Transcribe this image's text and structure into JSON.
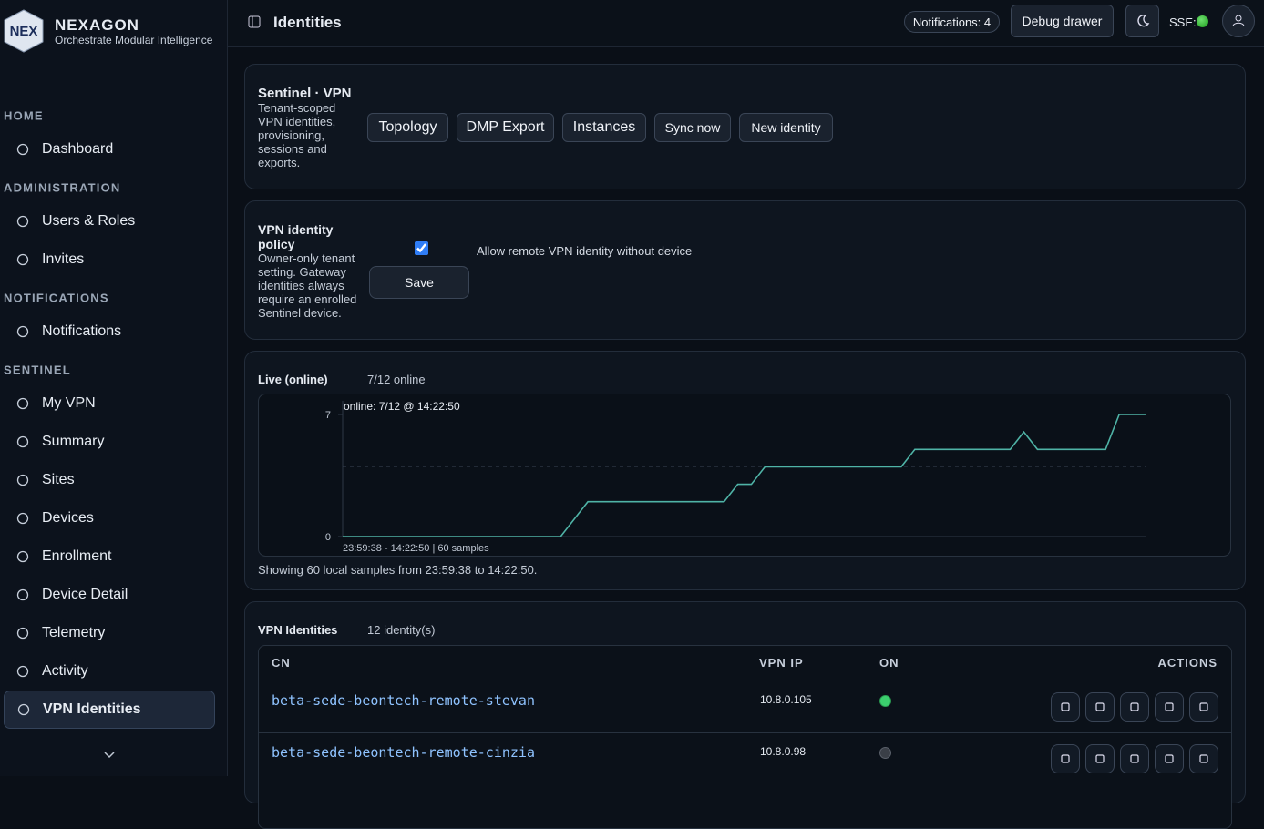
{
  "brand": {
    "logo": "NEX",
    "name": "NEXAGON",
    "tagline": "Orchestrate Modular Intelligence"
  },
  "sidebar": {
    "active": "VPN Identities",
    "sections": [
      {
        "title": "HOME",
        "items": [
          "Dashboard"
        ]
      },
      {
        "title": "ADMINISTRATION",
        "items": [
          "Users & Roles",
          "Invites"
        ]
      },
      {
        "title": "NOTIFICATIONS",
        "items": [
          "Notifications"
        ]
      },
      {
        "title": "SENTINEL",
        "items": [
          "My VPN",
          "Summary",
          "Sites",
          "Devices",
          "Enrollment",
          "Device Detail",
          "Telemetry",
          "Activity",
          "VPN Identities"
        ]
      }
    ]
  },
  "topbar": {
    "title": "Identities",
    "notifications": "Notifications: 4",
    "debug": "Debug drawer",
    "sse": "SSE:"
  },
  "header_card": {
    "title": "Sentinel · VPN",
    "description": "Tenant-scoped VPN identities, provisioning, sessions and exports.",
    "buttons": [
      "Topology",
      "DMP Export",
      "Instances",
      "Sync now",
      "New identity"
    ]
  },
  "policy_card": {
    "title": "VPN identity policy",
    "description": "Owner-only tenant setting. Gateway identities always require an enrolled Sentinel device.",
    "checkbox_label": "Allow remote VPN identity without device",
    "checked": true,
    "save": "Save"
  },
  "live_card": {
    "title": "Live (online)",
    "status": "7/12 online",
    "footnote": "Showing 60 local samples from 23:59:38 to 14:22:50."
  },
  "chart_data": {
    "type": "line",
    "annotation": "online: 7/12 @ 14:22:50",
    "x_label": "23:59:38 - 14:22:50 | 60 samples",
    "color": "#4fb3a6",
    "values": [
      0,
      0,
      0,
      0,
      0,
      0,
      0,
      0,
      0,
      0,
      0,
      0,
      0,
      0,
      0,
      0,
      0,
      1,
      2,
      2,
      2,
      2,
      2,
      2,
      2,
      2,
      2,
      2,
      2,
      3,
      3,
      4,
      4,
      4,
      4,
      4,
      4,
      4,
      4,
      4,
      4,
      4,
      5,
      5,
      5,
      5,
      5,
      5,
      5,
      5,
      6,
      5,
      5,
      5,
      5,
      5,
      5,
      7,
      7,
      7
    ],
    "ylim": [
      0,
      7
    ],
    "yticks": [
      0,
      7
    ]
  },
  "identities_card": {
    "title": "VPN Identities",
    "count": "12 identity(s)"
  },
  "table": {
    "columns": [
      "CN",
      "VPN IP",
      "ON",
      "ACTIONS"
    ],
    "rows": [
      {
        "cn": "beta-sede-beontech-remote-stevan",
        "ip": "10.8.0.105",
        "on": true
      },
      {
        "cn": "beta-sede-beontech-remote-cinzia",
        "ip": "10.8.0.98",
        "on": false
      }
    ]
  }
}
